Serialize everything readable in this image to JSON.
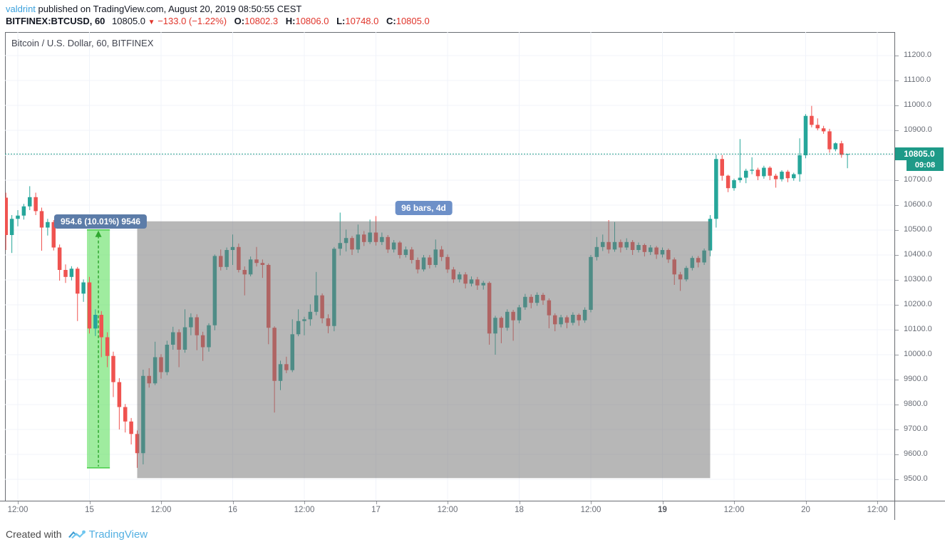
{
  "header": {
    "author": "valdrint",
    "published": " published on TradingView.com, August 20, 2019 08:50:55 CEST"
  },
  "quote": {
    "symbol": "BITFINEX:BTCUSD, 60",
    "last": "10805.0",
    "direction_icon": "▼",
    "change": "−133.0 (−1.22%)",
    "o_label": "O:",
    "o": "10802.3",
    "h_label": "H:",
    "h": "10806.0",
    "l_label": "L:",
    "l": "10748.0",
    "c_label": "C:",
    "c": "10805.0"
  },
  "chart": {
    "title": "Bitcoin / U.S. Dollar, 60, BITFINEX"
  },
  "colors": {
    "up": "#26a69a",
    "down": "#ef5350",
    "grid": "#f0f3fa",
    "axis_text": "#696d76",
    "frame": "#696c72",
    "gray_box_fill": "rgba(117,117,117,0.52)",
    "band_fill": "rgba(80,220,80,0.55)",
    "band_edge": "#44cc44",
    "band_dash": "#2fa82f",
    "current_line": "#1e9a88",
    "bars_pill_bg": "#6d90c8",
    "range_pill_bg": "#5c7ca8"
  },
  "chart_data": {
    "type": "candlestick",
    "title": "Bitcoin / U.S. Dollar, 60, BITFINEX",
    "symbol": "BITFINEX:BTCUSD",
    "interval_minutes": 60,
    "start_time": "2019-08-14 10:00",
    "ylim": [
      9500,
      11200
    ],
    "price_gridline_step": 100,
    "legend_position": "none",
    "grid": true,
    "price_ticks": [
      9500,
      9600,
      9700,
      9800,
      9900,
      10000,
      10100,
      10200,
      10300,
      10400,
      10500,
      10600,
      10700,
      10800,
      10900,
      11000,
      11100,
      11200
    ],
    "time_ticks": [
      {
        "label": "12:00",
        "hour": 2,
        "bold": false
      },
      {
        "label": "15",
        "hour": 14,
        "bold": false
      },
      {
        "label": "12:00",
        "hour": 26,
        "bold": false
      },
      {
        "label": "16",
        "hour": 38,
        "bold": false
      },
      {
        "label": "12:00",
        "hour": 50,
        "bold": false
      },
      {
        "label": "17",
        "hour": 62,
        "bold": false
      },
      {
        "label": "12:00",
        "hour": 74,
        "bold": false
      },
      {
        "label": "18",
        "hour": 86,
        "bold": false
      },
      {
        "label": "12:00",
        "hour": 98,
        "bold": false
      },
      {
        "label": "19",
        "hour": 110,
        "bold": true
      },
      {
        "label": "12:00",
        "hour": 122,
        "bold": false
      },
      {
        "label": "20",
        "hour": 134,
        "bold": false
      },
      {
        "label": "12:00",
        "hour": 146,
        "bold": false
      }
    ],
    "candles_ohlc": [
      [
        10630,
        10650,
        10420,
        10480
      ],
      [
        10480,
        10560,
        10408,
        10545
      ],
      [
        10545,
        10580,
        10515,
        10558
      ],
      [
        10558,
        10605,
        10542,
        10595
      ],
      [
        10595,
        10676,
        10580,
        10632
      ],
      [
        10632,
        10650,
        10560,
        10576
      ],
      [
        10576,
        10590,
        10417,
        10510
      ],
      [
        10510,
        10545,
        10478,
        10532
      ],
      [
        10532,
        10540,
        10418,
        10430
      ],
      [
        10430,
        10442,
        10297,
        10340
      ],
      [
        10340,
        10362,
        10288,
        10312
      ],
      [
        10312,
        10355,
        10298,
        10345
      ],
      [
        10345,
        10352,
        10135,
        10245
      ],
      [
        10245,
        10302,
        10212,
        10290
      ],
      [
        10290,
        10312,
        10085,
        10105
      ],
      [
        10105,
        10182,
        10075,
        10160
      ],
      [
        10160,
        10175,
        9990,
        10070
      ],
      [
        10070,
        10090,
        9950,
        9995
      ],
      [
        9995,
        10012,
        9830,
        9890
      ],
      [
        9890,
        9906,
        9700,
        9790
      ],
      [
        9790,
        9802,
        9688,
        9732
      ],
      [
        9732,
        9746,
        9640,
        9682
      ],
      [
        9682,
        9696,
        9546,
        9605
      ],
      [
        9605,
        9940,
        9560,
        9915
      ],
      [
        9915,
        9946,
        9868,
        9885
      ],
      [
        9885,
        10052,
        9878,
        9990
      ],
      [
        9990,
        10002,
        9904,
        9930
      ],
      [
        9930,
        10056,
        9918,
        10040
      ],
      [
        10040,
        10112,
        10020,
        10090
      ],
      [
        10090,
        10102,
        9950,
        10020
      ],
      [
        10020,
        10182,
        10008,
        10110
      ],
      [
        10110,
        10166,
        10078,
        10150
      ],
      [
        10150,
        10162,
        10018,
        10078
      ],
      [
        10078,
        10092,
        9975,
        10030
      ],
      [
        10030,
        10126,
        10012,
        10118
      ],
      [
        10118,
        10402,
        10098,
        10396
      ],
      [
        10396,
        10422,
        10338,
        10352
      ],
      [
        10352,
        10430,
        10340,
        10420
      ],
      [
        10420,
        10482,
        10360,
        10432
      ],
      [
        10432,
        10446,
        10330,
        10340
      ],
      [
        10340,
        10354,
        10238,
        10322
      ],
      [
        10322,
        10394,
        10314,
        10382
      ],
      [
        10382,
        10432,
        10354,
        10368
      ],
      [
        10368,
        10382,
        10308,
        10360
      ],
      [
        10360,
        10366,
        10042,
        10108
      ],
      [
        10108,
        10114,
        9768,
        9895
      ],
      [
        9895,
        9976,
        9858,
        9962
      ],
      [
        9962,
        9992,
        9926,
        9938
      ],
      [
        9938,
        10142,
        9930,
        10082
      ],
      [
        10082,
        10182,
        10074,
        10135
      ],
      [
        10135,
        10152,
        10078,
        10142
      ],
      [
        10142,
        10202,
        10116,
        10172
      ],
      [
        10172,
        10332,
        10158,
        10238
      ],
      [
        10238,
        10246,
        10126,
        10146
      ],
      [
        10146,
        10162,
        10086,
        10115
      ],
      [
        10115,
        10432,
        10094,
        10425
      ],
      [
        10425,
        10570,
        10398,
        10448
      ],
      [
        10448,
        10502,
        10414,
        10468
      ],
      [
        10468,
        10476,
        10400,
        10422
      ],
      [
        10422,
        10522,
        10408,
        10482
      ],
      [
        10482,
        10496,
        10436,
        10452
      ],
      [
        10452,
        10542,
        10444,
        10490
      ],
      [
        10490,
        10556,
        10438,
        10452
      ],
      [
        10452,
        10490,
        10440,
        10472
      ],
      [
        10472,
        10480,
        10408,
        10422
      ],
      [
        10422,
        10460,
        10410,
        10450
      ],
      [
        10450,
        10456,
        10386,
        10400
      ],
      [
        10400,
        10434,
        10390,
        10422
      ],
      [
        10422,
        10432,
        10366,
        10380
      ],
      [
        10380,
        10390,
        10326,
        10342
      ],
      [
        10342,
        10400,
        10334,
        10390
      ],
      [
        10390,
        10400,
        10346,
        10360
      ],
      [
        10360,
        10462,
        10350,
        10422
      ],
      [
        10422,
        10436,
        10376,
        10392
      ],
      [
        10392,
        10402,
        10328,
        10342
      ],
      [
        10342,
        10352,
        10288,
        10302
      ],
      [
        10302,
        10332,
        10290,
        10322
      ],
      [
        10322,
        10331,
        10266,
        10285
      ],
      [
        10285,
        10314,
        10274,
        10302
      ],
      [
        10302,
        10312,
        10260,
        10278
      ],
      [
        10278,
        10296,
        10261,
        10288
      ],
      [
        10288,
        10294,
        10040,
        10085
      ],
      [
        10085,
        10156,
        10000,
        10148
      ],
      [
        10148,
        10154,
        10046,
        10108
      ],
      [
        10108,
        10182,
        10096,
        10172
      ],
      [
        10172,
        10180,
        10056,
        10138
      ],
      [
        10138,
        10200,
        10126,
        10190
      ],
      [
        10190,
        10244,
        10180,
        10232
      ],
      [
        10232,
        10242,
        10186,
        10208
      ],
      [
        10208,
        10250,
        10196,
        10240
      ],
      [
        10240,
        10248,
        10200,
        10218
      ],
      [
        10218,
        10226,
        10106,
        10158
      ],
      [
        10158,
        10166,
        10094,
        10122
      ],
      [
        10122,
        10160,
        10110,
        10150
      ],
      [
        10150,
        10158,
        10106,
        10128
      ],
      [
        10128,
        10170,
        10118,
        10160
      ],
      [
        10160,
        10166,
        10116,
        10138
      ],
      [
        10138,
        10190,
        10128,
        10180
      ],
      [
        10180,
        10400,
        10170,
        10392
      ],
      [
        10392,
        10472,
        10378,
        10432
      ],
      [
        10432,
        10482,
        10416,
        10452
      ],
      [
        10452,
        10540,
        10406,
        10422
      ],
      [
        10422,
        10532,
        10413,
        10452
      ],
      [
        10452,
        10462,
        10410,
        10430
      ],
      [
        10430,
        10467,
        10420,
        10452
      ],
      [
        10452,
        10460,
        10400,
        10420
      ],
      [
        10420,
        10450,
        10410,
        10440
      ],
      [
        10440,
        10446,
        10394,
        10412
      ],
      [
        10412,
        10440,
        10400,
        10430
      ],
      [
        10430,
        10436,
        10384,
        10402
      ],
      [
        10402,
        10430,
        10390,
        10420
      ],
      [
        10420,
        10426,
        10368,
        10382
      ],
      [
        10382,
        10390,
        10280,
        10322
      ],
      [
        10322,
        10332,
        10256,
        10302
      ],
      [
        10302,
        10356,
        10294,
        10348
      ],
      [
        10348,
        10396,
        10338,
        10388
      ],
      [
        10388,
        10396,
        10350,
        10370
      ],
      [
        10370,
        10426,
        10360,
        10418
      ],
      [
        10418,
        10560,
        10395,
        10545
      ],
      [
        10545,
        10802,
        10510,
        10785
      ],
      [
        10785,
        10801,
        10698,
        10718
      ],
      [
        10718,
        10722,
        10652,
        10668
      ],
      [
        10668,
        10706,
        10658,
        10700
      ],
      [
        10700,
        10865,
        10690,
        10710
      ],
      [
        10710,
        10746,
        10688,
        10738
      ],
      [
        10738,
        10792,
        10724,
        10742
      ],
      [
        10742,
        10750,
        10700,
        10716
      ],
      [
        10716,
        10758,
        10706,
        10750
      ],
      [
        10750,
        10756,
        10700,
        10718
      ],
      [
        10718,
        10726,
        10670,
        10704
      ],
      [
        10704,
        10740,
        10695,
        10734
      ],
      [
        10734,
        10741,
        10692,
        10708
      ],
      [
        10708,
        10730,
        10698,
        10724
      ],
      [
        10724,
        10868,
        10694,
        10800
      ],
      [
        10800,
        10965,
        10788,
        10958
      ],
      [
        10958,
        10998,
        10912,
        10922
      ],
      [
        10922,
        10948,
        10900,
        10908
      ],
      [
        10908,
        10918,
        10886,
        10896
      ],
      [
        10896,
        10906,
        10810,
        10824
      ],
      [
        10824,
        10852,
        10816,
        10848
      ],
      [
        10848,
        10858,
        10790,
        10802
      ],
      [
        10802,
        10806,
        10748,
        10805
      ]
    ],
    "annotations": {
      "date_range_box": {
        "label": "96 bars, 4d",
        "start_hour": 22,
        "end_hour": 118,
        "top_price": 10535,
        "bottom_price": 9505
      },
      "price_range_band": {
        "label": "954.6 (10.01%) 9546",
        "start_hour": 14,
        "end_hour": 17,
        "top_price": 10500.6,
        "bottom_price": 9546
      },
      "current_price_line": {
        "price": 10805,
        "label": "10805.0",
        "countdown": "09:08"
      }
    }
  },
  "footer": {
    "created_with": "Created with",
    "brand": "TradingView"
  }
}
